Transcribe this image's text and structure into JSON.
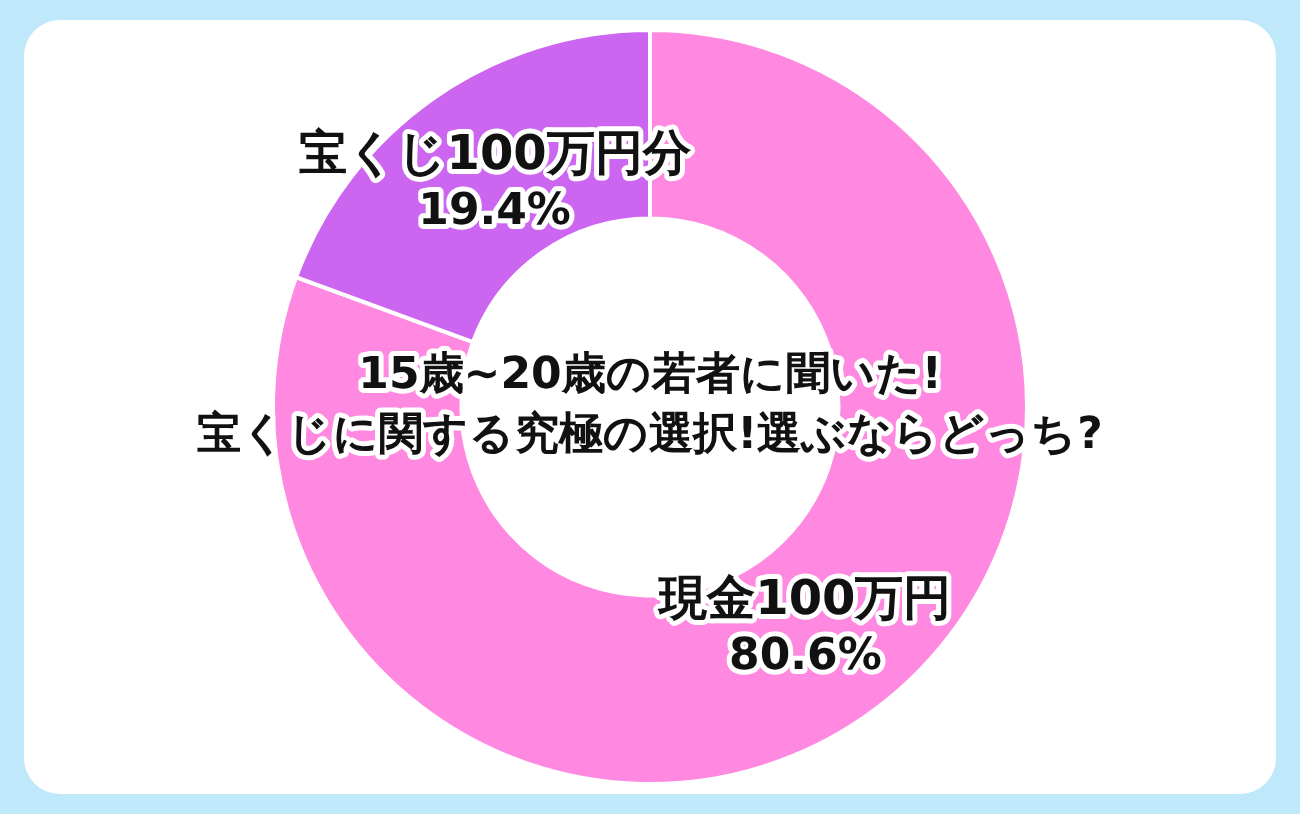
{
  "chart_data": {
    "type": "donut",
    "title": "15歳~20歳の若者に聞いた!\n宝くじに関する究極の選択!選ぶならどっち?",
    "categories": [
      "現金100万円",
      "宝くじ100万円分"
    ],
    "values": [
      80.6,
      19.4
    ],
    "colors": [
      "#ff88e0",
      "#cc66f0"
    ],
    "value_labels": [
      "80.6%",
      "19.4%"
    ],
    "legend": false
  }
}
